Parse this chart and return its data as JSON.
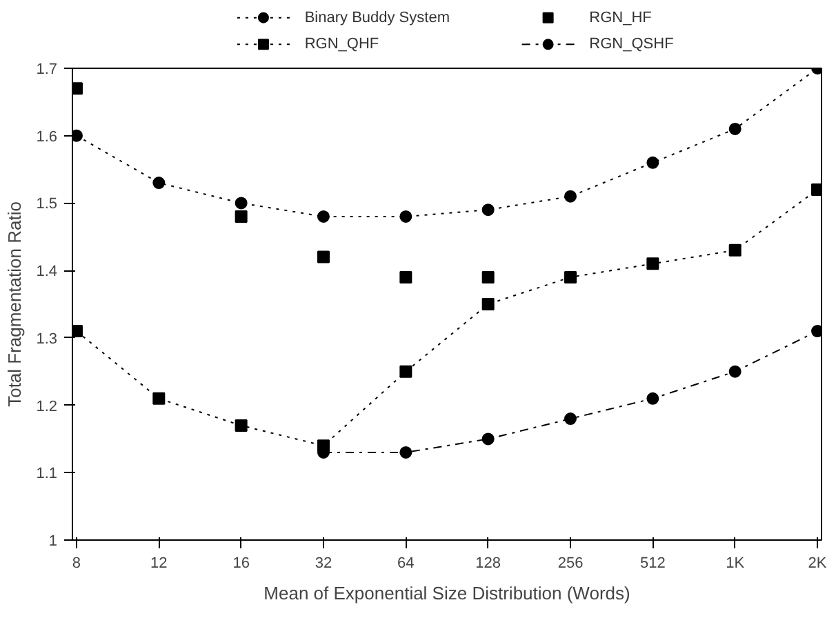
{
  "chart_data": {
    "type": "line",
    "xlabel": "Mean of Exponential Size Distribution (Words)",
    "ylabel": "Total Fragmentation Ratio",
    "categories": [
      "8",
      "12",
      "16",
      "32",
      "64",
      "128",
      "256",
      "512",
      "1K",
      "2K"
    ],
    "ylim": [
      1,
      1.7
    ],
    "yticks": [
      1,
      1.1,
      1.2,
      1.3,
      1.4,
      1.5,
      1.6,
      1.7
    ],
    "grid": false,
    "legend": "top",
    "series": [
      {
        "name": "Binary Buddy System",
        "color": "#000000",
        "marker": "circle",
        "line_style": "dotted",
        "values": [
          1.6,
          1.53,
          1.5,
          1.48,
          1.48,
          1.49,
          1.51,
          1.56,
          1.61,
          1.7
        ]
      },
      {
        "name": "RGN_HF",
        "color": "#000000",
        "type": "scatter",
        "marker": "square",
        "values": [
          1.67,
          null,
          1.48,
          1.42,
          1.39,
          1.39,
          null,
          null,
          null,
          null
        ]
      },
      {
        "name": "RGN_QHF",
        "color": "#000000",
        "marker": "square",
        "line_style": "dotted",
        "values": [
          1.31,
          1.21,
          1.17,
          1.14,
          1.25,
          1.35,
          1.39,
          1.41,
          1.43,
          1.52
        ]
      },
      {
        "name": "RGN_QSHF",
        "color": "#000000",
        "marker": "circle",
        "line_style": "dashed",
        "values": [
          null,
          null,
          null,
          1.13,
          1.13,
          1.15,
          1.18,
          1.21,
          1.25,
          1.31
        ]
      }
    ]
  }
}
